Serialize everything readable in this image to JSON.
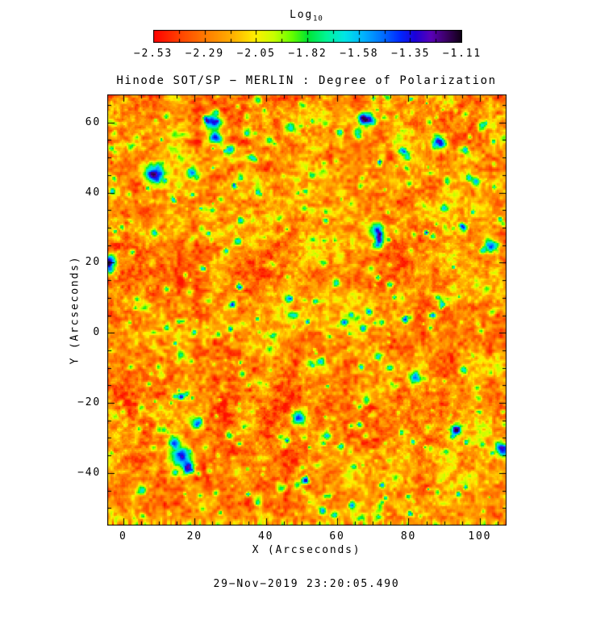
{
  "figure": {
    "background": "#ffffff",
    "text_color": "#000000"
  },
  "colorbar": {
    "title_main": "Log",
    "title_sub": "10",
    "tick_labels": [
      "−2.53",
      "−2.29",
      "−2.05",
      "−1.82",
      "−1.58",
      "−1.35",
      "−1.11"
    ]
  },
  "title": "Hinode SOT/SP − MERLIN : Degree of Polarization",
  "footer": {
    "timestamp": "29−Nov−2019 23:20:05.490"
  },
  "chart_data": {
    "type": "heatmap",
    "title": "Hinode SOT/SP − MERLIN : Degree of Polarization",
    "xlabel": "X (Arcseconds)",
    "ylabel": "Y (Arcseconds)",
    "xlim": [
      -4.5,
      107.5
    ],
    "ylim": [
      -55,
      68
    ],
    "x_ticks": [
      0,
      20,
      40,
      60,
      80,
      100
    ],
    "y_ticks": [
      60,
      40,
      20,
      0,
      -20,
      -40
    ],
    "minor_tick_step": 5,
    "colorbar": {
      "scale": "Log10",
      "ticks": [
        -2.53,
        -2.29,
        -2.05,
        -1.82,
        -1.58,
        -1.35,
        -1.11
      ],
      "range": [
        -2.53,
        -1.11
      ]
    },
    "value_summary": "Log10 degree of polarization: granular background mostly −2.5 to −2.1 (red/orange with yellow mottling), scattered green speckles near −1.9, compact cyan/blue/navy magnetic patches reaching −1.2, and a striped red/yellow artifact band along the bottom edge of the map.",
    "palette_stops": [
      [
        0.0,
        "#ff0000"
      ],
      [
        0.09,
        "#ff4600"
      ],
      [
        0.17,
        "#ff7d00"
      ],
      [
        0.26,
        "#ffb400"
      ],
      [
        0.33,
        "#fff000"
      ],
      [
        0.39,
        "#c8ff00"
      ],
      [
        0.45,
        "#64ff00"
      ],
      [
        0.5,
        "#00e632"
      ],
      [
        0.56,
        "#00f596"
      ],
      [
        0.62,
        "#00e6e6"
      ],
      [
        0.68,
        "#00b4ff"
      ],
      [
        0.74,
        "#0073ff"
      ],
      [
        0.8,
        "#0028ff"
      ],
      [
        0.85,
        "#1e00d7"
      ],
      [
        0.9,
        "#5a00b9"
      ],
      [
        0.95,
        "#3c0064"
      ],
      [
        1.0,
        "#0f0014"
      ]
    ],
    "features": [
      {
        "x": 8.5,
        "y": 45.5,
        "peak": -1.15,
        "r": 1.9
      },
      {
        "x": 19.0,
        "y": 46.0,
        "peak": -1.45,
        "r": 1.2
      },
      {
        "x": 25.0,
        "y": 60.5,
        "peak": -1.18,
        "r": 1.6
      },
      {
        "x": 25.5,
        "y": 56.0,
        "peak": -1.3,
        "r": 1.2
      },
      {
        "x": 29.5,
        "y": 52.5,
        "peak": -1.55,
        "r": 1.0
      },
      {
        "x": 34.5,
        "y": 57.5,
        "peak": -1.5,
        "r": 1.0
      },
      {
        "x": 41.0,
        "y": 55.0,
        "peak": -1.7,
        "r": 0.8
      },
      {
        "x": 68.5,
        "y": 61.0,
        "peak": -1.3,
        "r": 1.4
      },
      {
        "x": 66.0,
        "y": 57.5,
        "peak": -1.55,
        "r": 0.9
      },
      {
        "x": 88.5,
        "y": 54.5,
        "peak": -1.28,
        "r": 1.4
      },
      {
        "x": 95.5,
        "y": 52.5,
        "peak": -1.6,
        "r": 0.9
      },
      {
        "x": 71.0,
        "y": 29.5,
        "peak": -1.25,
        "r": 1.4
      },
      {
        "x": 71.5,
        "y": 25.5,
        "peak": -1.4,
        "r": 1.1
      },
      {
        "x": 103.0,
        "y": 25.0,
        "peak": -1.3,
        "r": 1.4
      },
      {
        "x": -4.0,
        "y": 21.0,
        "peak": -1.35,
        "r": 1.3
      },
      {
        "x": -4.0,
        "y": 18.0,
        "peak": -1.55,
        "r": 1.0
      },
      {
        "x": 6.0,
        "y": 7.5,
        "peak": -1.7,
        "r": 0.9
      },
      {
        "x": 30.0,
        "y": 8.0,
        "peak": -1.7,
        "r": 0.9
      },
      {
        "x": 48.0,
        "y": 5.0,
        "peak": -1.75,
        "r": 0.8
      },
      {
        "x": 86.0,
        "y": 5.0,
        "peak": -1.7,
        "r": 0.9
      },
      {
        "x": 56.0,
        "y": 20.0,
        "peak": -1.7,
        "r": 0.9
      },
      {
        "x": 81.5,
        "y": -12.5,
        "peak": -1.4,
        "r": 1.2
      },
      {
        "x": 20.5,
        "y": -25.5,
        "peak": -1.35,
        "r": 1.3
      },
      {
        "x": 16.0,
        "y": -35.0,
        "peak": -1.15,
        "r": 1.8
      },
      {
        "x": 14.0,
        "y": -31.0,
        "peak": -1.35,
        "r": 1.2
      },
      {
        "x": 18.0,
        "y": -38.5,
        "peak": -1.3,
        "r": 1.3
      },
      {
        "x": 10.5,
        "y": -27.5,
        "peak": -1.6,
        "r": 1.0
      },
      {
        "x": 49.0,
        "y": -24.0,
        "peak": -1.3,
        "r": 1.4
      },
      {
        "x": 57.0,
        "y": -29.0,
        "peak": -1.6,
        "r": 1.0
      },
      {
        "x": 93.0,
        "y": -27.5,
        "peak": -1.35,
        "r": 1.3
      },
      {
        "x": 106.0,
        "y": -33.0,
        "peak": -1.3,
        "r": 1.4
      },
      {
        "x": 44.0,
        "y": -44.0,
        "peak": -1.55,
        "r": 1.0
      },
      {
        "x": 5.0,
        "y": -44.5,
        "peak": -1.6,
        "r": 1.0
      }
    ],
    "timestamp": "29−Nov−2019 23:20:05.490"
  }
}
